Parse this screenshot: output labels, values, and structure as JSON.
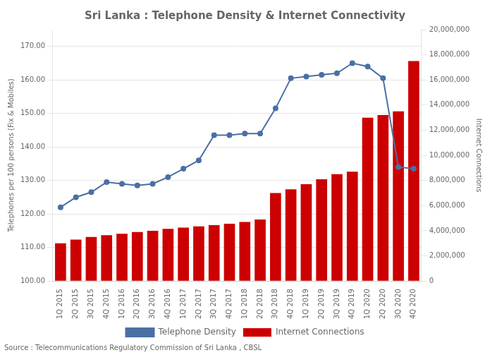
{
  "chart_data": {
    "type": "bar",
    "title": "Sri Lanka : Telephone Density & Internet Connectivity",
    "annotations": [
      "Source : Telecommunications Regulatory Commission of Sri Lanka , CBSL"
    ],
    "categories": [
      "1Q 2015",
      "2Q 2015",
      "3Q 2015",
      "4Q 2015",
      "1Q 2016",
      "2Q 2016",
      "3Q 2016",
      "4Q 2016",
      "1Q 2017",
      "2Q 2017",
      "3Q 2017",
      "4Q 2017",
      "1Q 2018",
      "2Q 2018",
      "3Q 2018",
      "4Q 2018",
      "1Q 2019",
      "2Q 2019",
      "3Q 2019",
      "4Q 2019",
      "1Q 2020",
      "2Q 2020",
      "3Q 2020",
      "4Q 2020"
    ],
    "series": [
      {
        "name": "Internet Connections",
        "type": "bar",
        "axis": "y2",
        "color": "#cc0000",
        "values": [
          3000000,
          3300000,
          3500000,
          3650000,
          3750000,
          3900000,
          4000000,
          4150000,
          4250000,
          4350000,
          4450000,
          4550000,
          4700000,
          4900000,
          7000000,
          7300000,
          7700000,
          8100000,
          8500000,
          8700000,
          13000000,
          13200000,
          13500000,
          17500000
        ]
      },
      {
        "name": "Telephone Density",
        "type": "line",
        "color": "#4a6fa5",
        "marker": "circle",
        "values": [
          122.0,
          125.0,
          126.5,
          129.5,
          129.0,
          128.5,
          129.0,
          131.0,
          133.5,
          136.0,
          143.5,
          143.5,
          144.0,
          144.0,
          151.5,
          160.5,
          161.0,
          161.5,
          162.0,
          165.0,
          164.0,
          160.5,
          134.0,
          133.5
        ]
      }
    ],
    "ylabel": "Telephones per 100 persons (Fix & Mobiles)",
    "y2label": "Internet Connections",
    "ylim": [
      100.0,
      175.0
    ],
    "yticks": [
      {
        "value": 100,
        "label": "100.00"
      },
      {
        "value": 110,
        "label": "110.00"
      },
      {
        "value": 120,
        "label": "120.00"
      },
      {
        "value": 130,
        "label": "130.00"
      },
      {
        "value": 140,
        "label": "140.00"
      },
      {
        "value": 150,
        "label": "150.00"
      },
      {
        "value": 160,
        "label": "160.00"
      },
      {
        "value": 170,
        "label": "170.00"
      }
    ],
    "y2lim": [
      0,
      20000000
    ],
    "y2ticks": [
      0,
      {
        "value": 2000000,
        "label": "2,000,000"
      },
      {
        "value": 4000000,
        "label": "4,000,000"
      },
      {
        "value": 6000000,
        "label": "6,000,000"
      },
      {
        "value": 8000000,
        "label": "8,000,000"
      },
      {
        "value": 10000000,
        "label": "10,000,000"
      },
      {
        "value": 12000000,
        "label": "12,000,000"
      },
      {
        "value": 14000000,
        "label": "14,000,000"
      },
      {
        "value": 16000000,
        "label": "16,000,000"
      },
      {
        "value": 18000000,
        "label": "18,000,000"
      },
      {
        "value": 20000000,
        "label": "20,000,000"
      }
    ],
    "grid": true,
    "legend": "bottom"
  }
}
